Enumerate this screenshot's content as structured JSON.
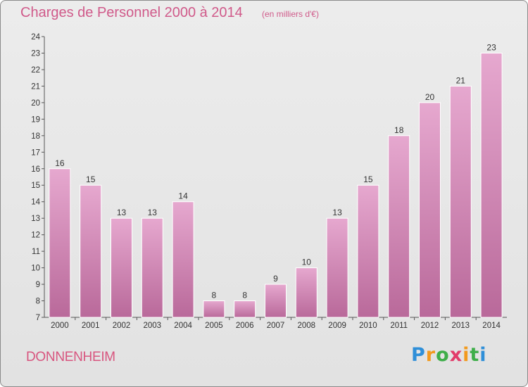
{
  "header": {
    "title": "Charges de Personnel 2000 à 2014",
    "subtitle": "(en milliers d'€)"
  },
  "footer": {
    "commune": "DONNENHEIM",
    "logo_text": "Proxiti",
    "logo_letters": [
      "P",
      "r",
      "o",
      "x",
      "i",
      "t",
      "i"
    ],
    "logo_colors": [
      "#2f8fd8",
      "#f29a1e",
      "#3fae4a",
      "#e23b6a",
      "#f29a1e",
      "#3fae4a",
      "#2f8fd8"
    ]
  },
  "colors": {
    "bar_top": "#e6a8cf",
    "bar_bottom": "#b9699a",
    "text_accent": "#d05a8a"
  },
  "chart_data": {
    "type": "bar",
    "title": "Charges de Personnel 2000 à 2014",
    "subtitle": "(en milliers d'€)",
    "categories": [
      "2000",
      "2001",
      "2002",
      "2003",
      "2004",
      "2005",
      "2006",
      "2007",
      "2008",
      "2009",
      "2010",
      "2011",
      "2012",
      "2013",
      "2014"
    ],
    "values": [
      16,
      15,
      13,
      13,
      14,
      8,
      8,
      9,
      10,
      13,
      15,
      18,
      20,
      21,
      23
    ],
    "data_labels": [
      "16",
      "15",
      "13",
      "13",
      "14",
      "8",
      "8",
      "9",
      "10",
      "13",
      "15",
      "18",
      "20",
      "21",
      "23"
    ],
    "yticks": [
      "7",
      "8",
      "9",
      "10",
      "11",
      "12",
      "13",
      "14",
      "15",
      "16",
      "17",
      "18",
      "19",
      "20",
      "21",
      "22",
      "23",
      "24"
    ],
    "ylim": [
      7,
      24
    ],
    "xlabel": "",
    "ylabel": "",
    "grid": false,
    "legend": "none"
  }
}
